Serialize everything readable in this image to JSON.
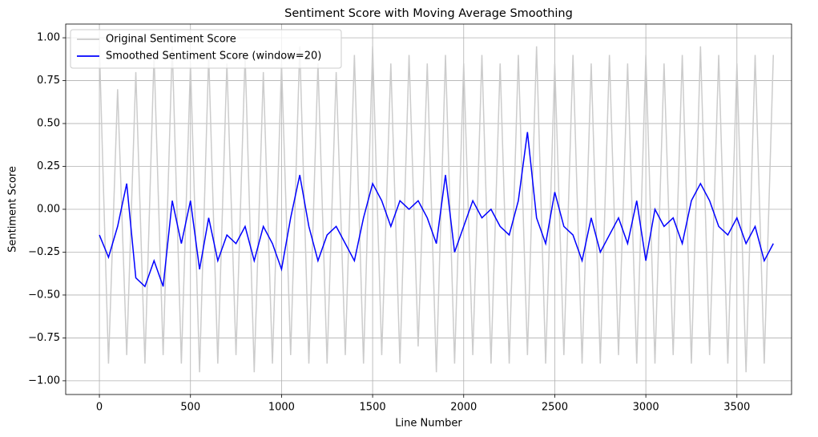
{
  "chart_data": {
    "type": "line",
    "title": "Sentiment Score with Moving Average Smoothing",
    "xlabel": "Line Number",
    "ylabel": "Sentiment Score",
    "x": [
      0,
      50,
      100,
      150,
      200,
      250,
      300,
      350,
      400,
      450,
      500,
      550,
      600,
      650,
      700,
      750,
      800,
      850,
      900,
      950,
      1000,
      1050,
      1100,
      1150,
      1200,
      1250,
      1300,
      1350,
      1400,
      1450,
      1500,
      1550,
      1600,
      1650,
      1700,
      1750,
      1800,
      1850,
      1900,
      1950,
      2000,
      2050,
      2100,
      2150,
      2200,
      2250,
      2300,
      2350,
      2400,
      2450,
      2500,
      2550,
      2600,
      2650,
      2700,
      2750,
      2800,
      2850,
      2900,
      2950,
      3000,
      3050,
      3100,
      3150,
      3200,
      3250,
      3300,
      3350,
      3400,
      3450,
      3500,
      3550,
      3600,
      3650,
      3700
    ],
    "series": [
      {
        "name": "Original Sentiment Score",
        "color": "#cccccc",
        "values": [
          0.95,
          -0.9,
          0.7,
          -0.85,
          0.8,
          -0.9,
          0.9,
          -0.85,
          0.95,
          -0.9,
          0.85,
          -0.95,
          0.9,
          -0.9,
          0.85,
          -0.85,
          0.9,
          -0.95,
          0.8,
          -0.9,
          0.85,
          -0.85,
          0.95,
          -0.9,
          0.85,
          -0.9,
          0.8,
          -0.85,
          0.9,
          -0.9,
          0.95,
          -0.85,
          0.85,
          -0.9,
          0.9,
          -0.8,
          0.85,
          -0.95,
          0.9,
          -0.9,
          0.85,
          -0.85,
          0.9,
          -0.9,
          0.85,
          -0.9,
          0.9,
          -0.85,
          0.95,
          -0.9,
          0.85,
          -0.85,
          0.9,
          -0.9,
          0.85,
          -0.9,
          0.9,
          -0.85,
          0.85,
          -0.9,
          0.9,
          -0.9,
          0.85,
          -0.85,
          0.9,
          -0.9,
          0.95,
          -0.85,
          0.9,
          -0.9,
          0.85,
          -0.95,
          0.9,
          -0.9,
          0.9
        ]
      },
      {
        "name": "Smoothed Sentiment Score (window=20)",
        "color": "#0000ff",
        "values": [
          -0.15,
          -0.28,
          -0.1,
          0.15,
          -0.4,
          -0.45,
          -0.3,
          -0.45,
          0.05,
          -0.2,
          0.05,
          -0.35,
          -0.05,
          -0.3,
          -0.15,
          -0.2,
          -0.1,
          -0.3,
          -0.1,
          -0.2,
          -0.35,
          -0.05,
          0.2,
          -0.1,
          -0.3,
          -0.15,
          -0.1,
          -0.2,
          -0.3,
          -0.05,
          0.15,
          0.05,
          -0.1,
          0.05,
          0.0,
          0.05,
          -0.05,
          -0.2,
          0.2,
          -0.25,
          -0.1,
          0.05,
          -0.05,
          0.0,
          -0.1,
          -0.15,
          0.05,
          0.45,
          -0.05,
          -0.2,
          0.1,
          -0.1,
          -0.15,
          -0.3,
          -0.05,
          -0.25,
          -0.15,
          -0.05,
          -0.2,
          0.05,
          -0.3,
          0.0,
          -0.1,
          -0.05,
          -0.2,
          0.05,
          0.15,
          0.05,
          -0.1,
          -0.15,
          -0.05,
          -0.2,
          -0.1,
          -0.3,
          -0.2
        ]
      }
    ],
    "xlim": [
      -185,
      3800
    ],
    "ylim": [
      -1.08,
      1.08
    ],
    "xticks": [
      0,
      500,
      1000,
      1500,
      2000,
      2500,
      3000,
      3500
    ],
    "yticks": [
      {
        "value": -1,
        "label": "−1.00"
      },
      {
        "value": -0.75,
        "label": "−0.75"
      },
      {
        "value": -0.5,
        "label": "−0.50"
      },
      {
        "value": -0.25,
        "label": "−0.25"
      },
      {
        "value": 0,
        "label": "0.00"
      },
      {
        "value": 0.25,
        "label": "0.25"
      },
      {
        "value": 0.5,
        "label": "0.50"
      },
      {
        "value": 0.75,
        "label": "0.75"
      },
      {
        "value": 1,
        "label": "1.00"
      }
    ],
    "grid": true,
    "legend": "upper-left"
  }
}
